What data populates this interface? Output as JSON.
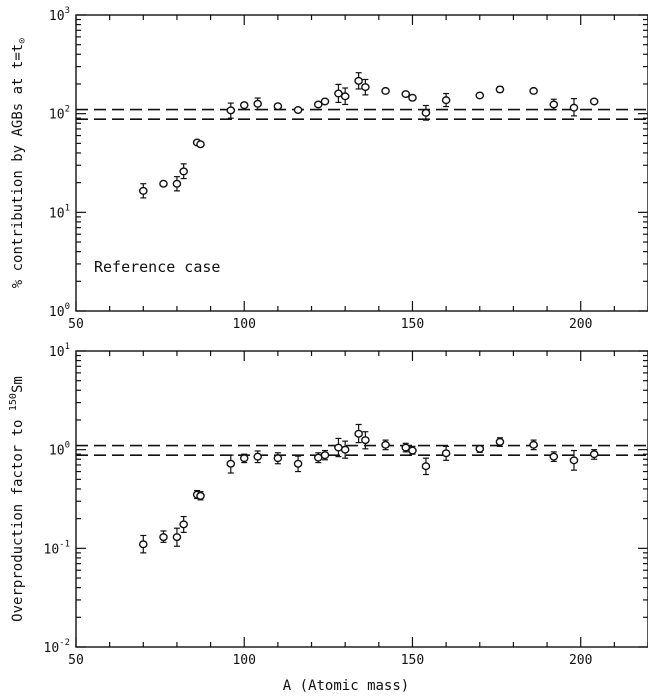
{
  "chart_data": [
    {
      "type": "scatter",
      "panel": "top",
      "ylabel_prefix": "% contribution by AGBs at t=t",
      "ylabel_sub": "⊙",
      "xlabel": "",
      "annotation": "Reference case",
      "xlim": [
        50,
        220
      ],
      "ylim": [
        1,
        1000
      ],
      "yscale": "log",
      "x_ticks": [
        50,
        100,
        150,
        200
      ],
      "y_ticks": [
        {
          "value": 1,
          "base": "10",
          "exp": "0"
        },
        {
          "value": 10,
          "base": "10",
          "exp": "1"
        },
        {
          "value": 100,
          "base": "10",
          "exp": "2"
        },
        {
          "value": 1000,
          "base": "10",
          "exp": "3"
        }
      ],
      "hlines": [
        88,
        110
      ],
      "series": [
        {
          "points": [
            {
              "x": 70,
              "y": 16.5,
              "lo": 14,
              "hi": 19.5
            },
            {
              "x": 76,
              "y": 19.5
            },
            {
              "x": 80,
              "y": 19.5,
              "lo": 16.5,
              "hi": 23
            },
            {
              "x": 82,
              "y": 26,
              "lo": 22,
              "hi": 31
            },
            {
              "x": 86,
              "y": 51
            },
            {
              "x": 87,
              "y": 49
            },
            {
              "x": 96,
              "y": 108,
              "lo": 90,
              "hi": 128
            },
            {
              "x": 100,
              "y": 122
            },
            {
              "x": 104,
              "y": 126,
              "lo": 110,
              "hi": 144
            },
            {
              "x": 110,
              "y": 119
            },
            {
              "x": 116,
              "y": 109
            },
            {
              "x": 122,
              "y": 124
            },
            {
              "x": 124,
              "y": 133
            },
            {
              "x": 128,
              "y": 160,
              "lo": 130,
              "hi": 198
            },
            {
              "x": 130,
              "y": 150,
              "lo": 124,
              "hi": 182
            },
            {
              "x": 134,
              "y": 215,
              "lo": 178,
              "hi": 260
            },
            {
              "x": 136,
              "y": 186,
              "lo": 155,
              "hi": 222
            },
            {
              "x": 142,
              "y": 170
            },
            {
              "x": 148,
              "y": 158
            },
            {
              "x": 150,
              "y": 145
            },
            {
              "x": 154,
              "y": 102,
              "lo": 86,
              "hi": 121
            },
            {
              "x": 160,
              "y": 137,
              "lo": 118,
              "hi": 160
            },
            {
              "x": 170,
              "y": 153
            },
            {
              "x": 176,
              "y": 176,
              "lo": 165,
              "hi": 188
            },
            {
              "x": 186,
              "y": 170
            },
            {
              "x": 192,
              "y": 124,
              "lo": 110,
              "hi": 140
            },
            {
              "x": 198,
              "y": 115,
              "lo": 95,
              "hi": 142
            },
            {
              "x": 204,
              "y": 133
            }
          ]
        }
      ]
    },
    {
      "type": "scatter",
      "panel": "bottom",
      "ylabel_prefix": "Overproduction factor to ",
      "ylabel_sup": "150",
      "ylabel_suffix": "Sm",
      "xlabel": "A (Atomic mass)",
      "xlim": [
        50,
        220
      ],
      "ylim": [
        0.01,
        10
      ],
      "yscale": "log",
      "x_ticks": [
        50,
        100,
        150,
        200
      ],
      "y_ticks": [
        {
          "value": 0.01,
          "base": "10",
          "exp": "-2"
        },
        {
          "value": 0.1,
          "base": "10",
          "exp": "-1"
        },
        {
          "value": 1,
          "base": "10",
          "exp": "0"
        },
        {
          "value": 10,
          "base": "10",
          "exp": "1"
        }
      ],
      "hlines": [
        0.88,
        1.1
      ],
      "series": [
        {
          "points": [
            {
              "x": 70,
              "y": 0.11,
              "lo": 0.09,
              "hi": 0.135
            },
            {
              "x": 76,
              "y": 0.13,
              "lo": 0.115,
              "hi": 0.15
            },
            {
              "x": 80,
              "y": 0.13,
              "lo": 0.105,
              "hi": 0.16
            },
            {
              "x": 82,
              "y": 0.175,
              "lo": 0.145,
              "hi": 0.21
            },
            {
              "x": 86,
              "y": 0.35,
              "lo": 0.32,
              "hi": 0.385
            },
            {
              "x": 87,
              "y": 0.34,
              "lo": 0.31,
              "hi": 0.375
            },
            {
              "x": 96,
              "y": 0.72,
              "lo": 0.58,
              "hi": 0.88
            },
            {
              "x": 100,
              "y": 0.82,
              "lo": 0.74,
              "hi": 0.9
            },
            {
              "x": 104,
              "y": 0.85,
              "lo": 0.74,
              "hi": 0.97
            },
            {
              "x": 110,
              "y": 0.82,
              "lo": 0.72,
              "hi": 0.93
            },
            {
              "x": 116,
              "y": 0.72,
              "lo": 0.6,
              "hi": 0.86
            },
            {
              "x": 122,
              "y": 0.83,
              "lo": 0.74,
              "hi": 0.93
            },
            {
              "x": 124,
              "y": 0.88,
              "lo": 0.79,
              "hi": 0.98
            },
            {
              "x": 128,
              "y": 1.05,
              "lo": 0.85,
              "hi": 1.3
            },
            {
              "x": 130,
              "y": 1.0,
              "lo": 0.82,
              "hi": 1.22
            },
            {
              "x": 134,
              "y": 1.45,
              "lo": 1.18,
              "hi": 1.8
            },
            {
              "x": 136,
              "y": 1.25,
              "lo": 1.02,
              "hi": 1.52
            },
            {
              "x": 142,
              "y": 1.12,
              "lo": 1.0,
              "hi": 1.25
            },
            {
              "x": 148,
              "y": 1.05,
              "lo": 0.95,
              "hi": 1.16
            },
            {
              "x": 150,
              "y": 0.98,
              "lo": 0.9,
              "hi": 1.08
            },
            {
              "x": 154,
              "y": 0.68,
              "lo": 0.56,
              "hi": 0.82
            },
            {
              "x": 160,
              "y": 0.92,
              "lo": 0.78,
              "hi": 1.08
            },
            {
              "x": 170,
              "y": 1.02,
              "lo": 0.94,
              "hi": 1.1
            },
            {
              "x": 176,
              "y": 1.2,
              "lo": 1.08,
              "hi": 1.32
            },
            {
              "x": 186,
              "y": 1.12,
              "lo": 1.0,
              "hi": 1.25
            },
            {
              "x": 192,
              "y": 0.85,
              "lo": 0.76,
              "hi": 0.95
            },
            {
              "x": 198,
              "y": 0.78,
              "lo": 0.62,
              "hi": 0.98
            },
            {
              "x": 204,
              "y": 0.9,
              "lo": 0.8,
              "hi": 1.0
            }
          ]
        }
      ]
    }
  ]
}
